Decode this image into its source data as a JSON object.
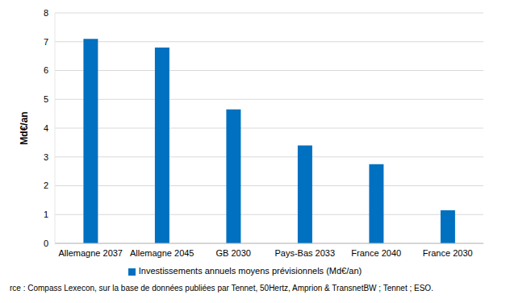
{
  "chart_data": {
    "type": "bar",
    "y_label": "Md€/an",
    "categories": [
      "Allemagne 2037",
      "Allemagne 2045",
      "GB 2030",
      "Pays-Bas 2033",
      "France 2040",
      "France 2030"
    ],
    "series": [
      {
        "name": "Investissements annuels moyens prévisionnels (Md€/an)",
        "color": "#0070c0",
        "values": [
          7.1,
          6.8,
          4.65,
          3.4,
          2.75,
          1.15
        ]
      }
    ],
    "ylim": [
      0,
      8
    ],
    "yticks": [
      0,
      1,
      2,
      3,
      4,
      5,
      6,
      7,
      8
    ],
    "grid": true,
    "legend": "bottom",
    "annotations": [
      "rce : Compass Lexecon, sur la base de données publiées par Tennet, 50Hertz, Amprion & TransnetBW ; Tennet ; ESO."
    ]
  }
}
